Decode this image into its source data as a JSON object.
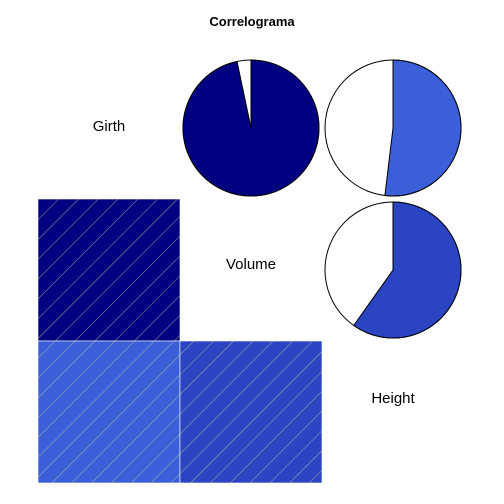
{
  "chart_data": {
    "type": "heatmap",
    "subtype": "correlogram",
    "title": "Correlograma",
    "variables": [
      "Girth",
      "Volume",
      "Height"
    ],
    "upper_panel": "pie",
    "lower_panel": "shade",
    "correlations": [
      {
        "row": "Girth",
        "col": "Volume",
        "r": 0.967
      },
      {
        "row": "Girth",
        "col": "Height",
        "r": 0.519
      },
      {
        "row": "Volume",
        "col": "Height",
        "r": 0.598
      }
    ],
    "colors": {
      "strong_positive": "#000080",
      "moderate_positive_1": "#3a5fd8",
      "moderate_positive_2": "#2a44c2",
      "pie_empty": "#ffffff",
      "hatch": "#c8c8a0",
      "outline": "#000000"
    }
  }
}
